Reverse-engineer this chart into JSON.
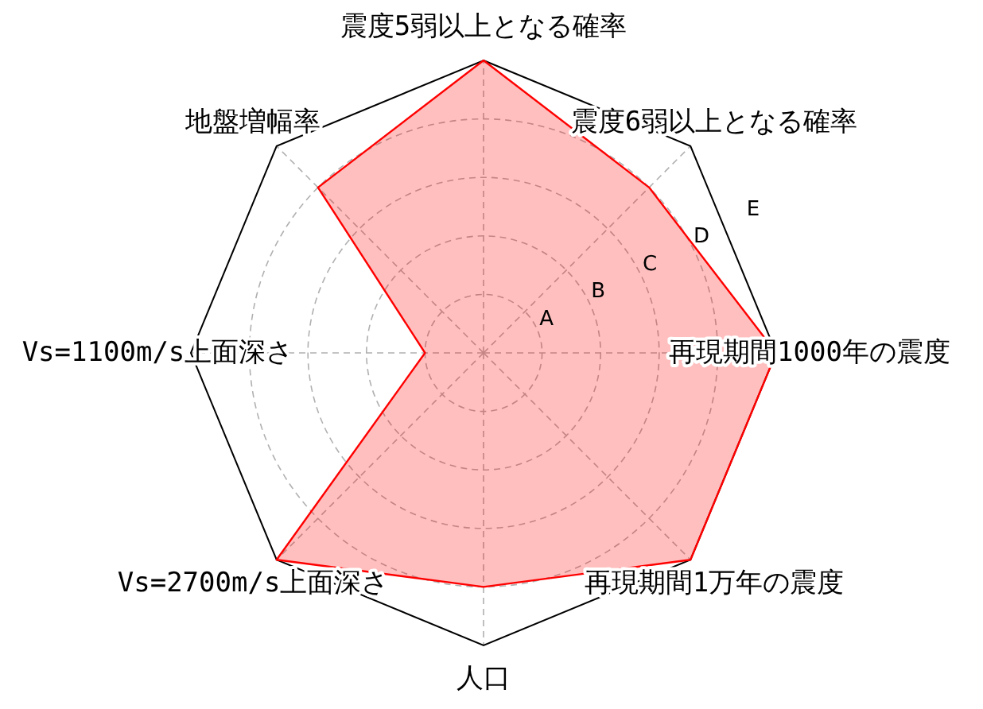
{
  "chart_data": {
    "type": "radar",
    "categories": [
      "震度5弱以上となる確率",
      "震度6弱以上となる確率",
      "再現期間1000年の震度",
      "再現期間1万年の震度",
      "人口",
      "Vs=2700m/s上面深さ",
      "Vs=1100m/s上面深さ",
      "地盤増幅率"
    ],
    "series": [
      {
        "color": "#ff0000",
        "values": [
          5,
          4,
          5,
          5,
          4,
          5,
          1,
          4
        ]
      }
    ],
    "ylim": [
      0,
      5
    ],
    "yticks": [
      {
        "value": 1,
        "label": "A"
      },
      {
        "value": 2,
        "label": "B"
      },
      {
        "value": 3,
        "label": "C"
      },
      {
        "value": 4,
        "label": "D"
      },
      {
        "value": 5,
        "label": "E"
      }
    ],
    "grid": true
  }
}
